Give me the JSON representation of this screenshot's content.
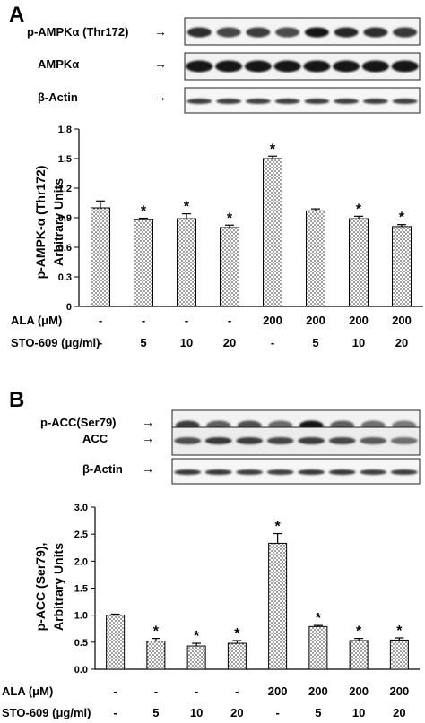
{
  "chart_data": [
    {
      "type": "bar",
      "panel_label": "A",
      "blot_labels": [
        "p-AMPKα (Thr172)",
        "AMPKα",
        "β-Actin"
      ],
      "ylabel_lines": [
        "p-AMPK-α (Thr172)",
        "Arbitrary Units"
      ],
      "ylim": [
        0,
        1.8
      ],
      "yticks": [
        "0",
        "0.3",
        "0.6",
        "0.9",
        "1.2",
        "1.5",
        "1.8"
      ],
      "categories": [
        "1",
        "2",
        "3",
        "4",
        "5",
        "6",
        "7",
        "8"
      ],
      "values": [
        1.0,
        0.88,
        0.89,
        0.8,
        1.5,
        0.97,
        0.89,
        0.81
      ],
      "errors": [
        0.07,
        0.015,
        0.05,
        0.025,
        0.025,
        0.02,
        0.025,
        0.02
      ],
      "significance": [
        "",
        "*",
        "*",
        "*",
        "*",
        "",
        "*",
        "*"
      ],
      "conditions": [
        {
          "label": "ALA (μM)",
          "values": [
            "-",
            "-",
            "-",
            "-",
            "200",
            "200",
            "200",
            "200"
          ]
        },
        {
          "label": "STO-609 (μg/ml)",
          "values": [
            "-",
            "5",
            "10",
            "20",
            "-",
            "5",
            "10",
            "20"
          ]
        }
      ]
    },
    {
      "type": "bar",
      "panel_label": "B",
      "blot_labels": [
        "p-ACC(Ser79)",
        "ACC",
        "β-Actin"
      ],
      "ylabel_lines": [
        "p-ACC (Ser79),",
        "Arbitrary Units"
      ],
      "ylim": [
        0,
        3.0
      ],
      "yticks": [
        "0.0",
        "0.5",
        "1.0",
        "1.5",
        "2.0",
        "2.5",
        "3.0"
      ],
      "categories": [
        "1",
        "2",
        "3",
        "4",
        "5",
        "6",
        "7",
        "8"
      ],
      "values": [
        1.0,
        0.52,
        0.43,
        0.48,
        2.33,
        0.79,
        0.53,
        0.54
      ],
      "errors": [
        0.02,
        0.05,
        0.05,
        0.05,
        0.18,
        0.02,
        0.04,
        0.04
      ],
      "significance": [
        "",
        "*",
        "*",
        "*",
        "*",
        "*",
        "*",
        "*"
      ],
      "conditions": [
        {
          "label": "ALA (μM)",
          "values": [
            "-",
            "-",
            "-",
            "-",
            "200",
            "200",
            "200",
            "200"
          ]
        },
        {
          "label": "STO-609 (μg/ml)",
          "values": [
            "-",
            "5",
            "10",
            "20",
            "-",
            "5",
            "10",
            "20"
          ]
        }
      ]
    }
  ]
}
